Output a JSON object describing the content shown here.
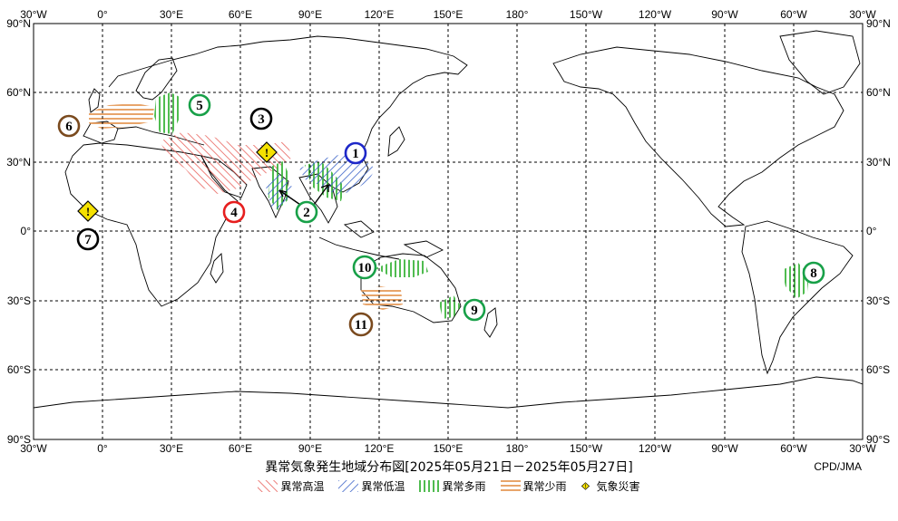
{
  "map": {
    "lon_labels": [
      "30°W",
      "0°",
      "30°E",
      "60°E",
      "90°E",
      "120°E",
      "150°E",
      "180°",
      "150°W",
      "120°W",
      "90°W",
      "60°W",
      "30°W"
    ],
    "lat_labels": [
      "90°N",
      "60°N",
      "30°N",
      "0°",
      "30°S",
      "60°S",
      "90°S"
    ],
    "colors": {
      "heat": "#e8605a",
      "cold": "#3c64c8",
      "wet": "#3cb43c",
      "dry": "#e69b5a",
      "disaster": "#f5e100"
    },
    "region_numbers": [
      {
        "label": "1",
        "ring_color": "#1e28c8"
      },
      {
        "label": "2",
        "ring_color": "#18a048"
      },
      {
        "label": "3",
        "ring_color": "#000000"
      },
      {
        "label": "4",
        "ring_color": "#e61e1e"
      },
      {
        "label": "5",
        "ring_color": "#18a048"
      },
      {
        "label": "6",
        "ring_color": "#7a4a1e"
      },
      {
        "label": "7",
        "ring_color": "#000000"
      },
      {
        "label": "8",
        "ring_color": "#18a048"
      },
      {
        "label": "9",
        "ring_color": "#18a048"
      },
      {
        "label": "10",
        "ring_color": "#18a048"
      },
      {
        "label": "11",
        "ring_color": "#7a4a1e"
      }
    ],
    "disaster_marker": "!"
  },
  "title": "異常気象発生地域分布図[2025年05月21日－2025年05月27日]",
  "credit": "CPD/JMA",
  "legend": [
    {
      "label": "異常高温",
      "icon": "heat-hatch"
    },
    {
      "label": "異常低温",
      "icon": "cold-hatch"
    },
    {
      "label": "異常多雨",
      "icon": "wet-hatch"
    },
    {
      "label": "異常少雨",
      "icon": "dry-hatch"
    },
    {
      "label": "気象災害",
      "icon": "disaster-diamond"
    }
  ]
}
